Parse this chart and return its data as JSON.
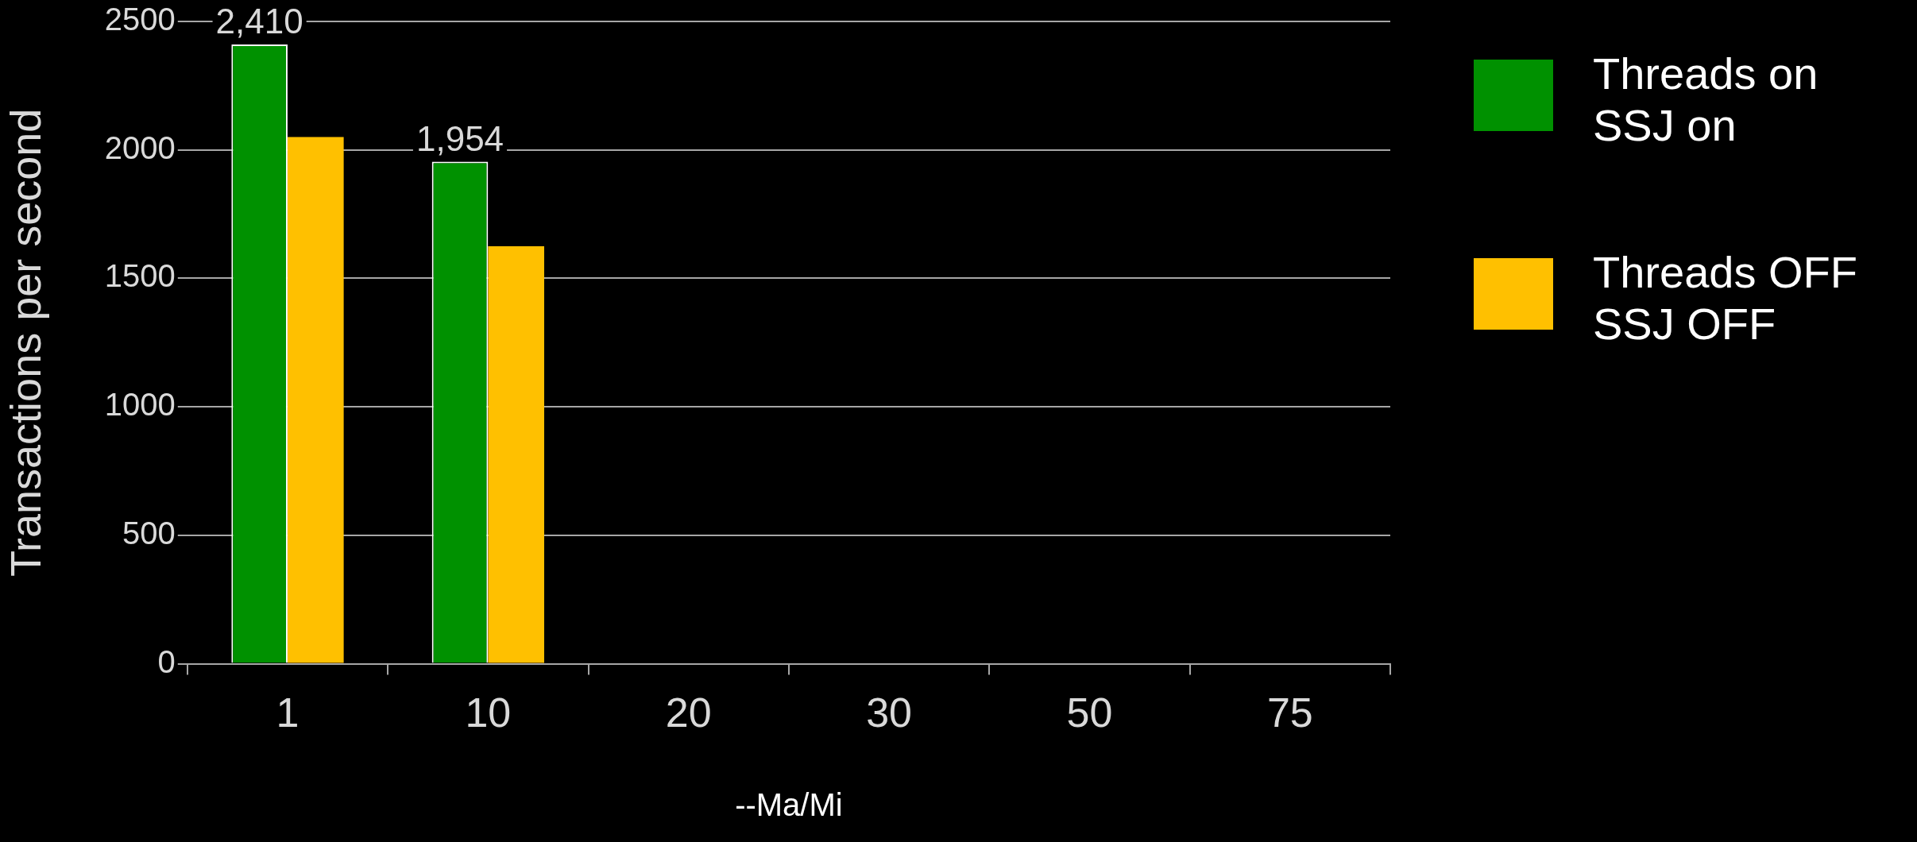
{
  "chart_data": {
    "type": "bar",
    "categories": [
      "1",
      "10",
      "20",
      "30",
      "50",
      "75"
    ],
    "ylabel": "Transactions per second",
    "xlabel": "--Ma/Mi",
    "series": [
      {
        "name": "Threads on SSJ on",
        "color": "#009100",
        "values": [
          2410,
          1954,
          null,
          null,
          null,
          null
        ],
        "value_labels": [
          "2,410",
          "1,954",
          null,
          null,
          null,
          null
        ]
      },
      {
        "name": "Threads OFF SSJ OFF",
        "color": "#ffc000",
        "values": [
          2050,
          1625,
          null,
          null,
          null,
          null
        ]
      }
    ],
    "ylim": [
      0,
      2500
    ],
    "yticks": [
      0,
      500,
      1000,
      1500,
      2000,
      2500
    ],
    "grid": "y",
    "legend": "right"
  }
}
